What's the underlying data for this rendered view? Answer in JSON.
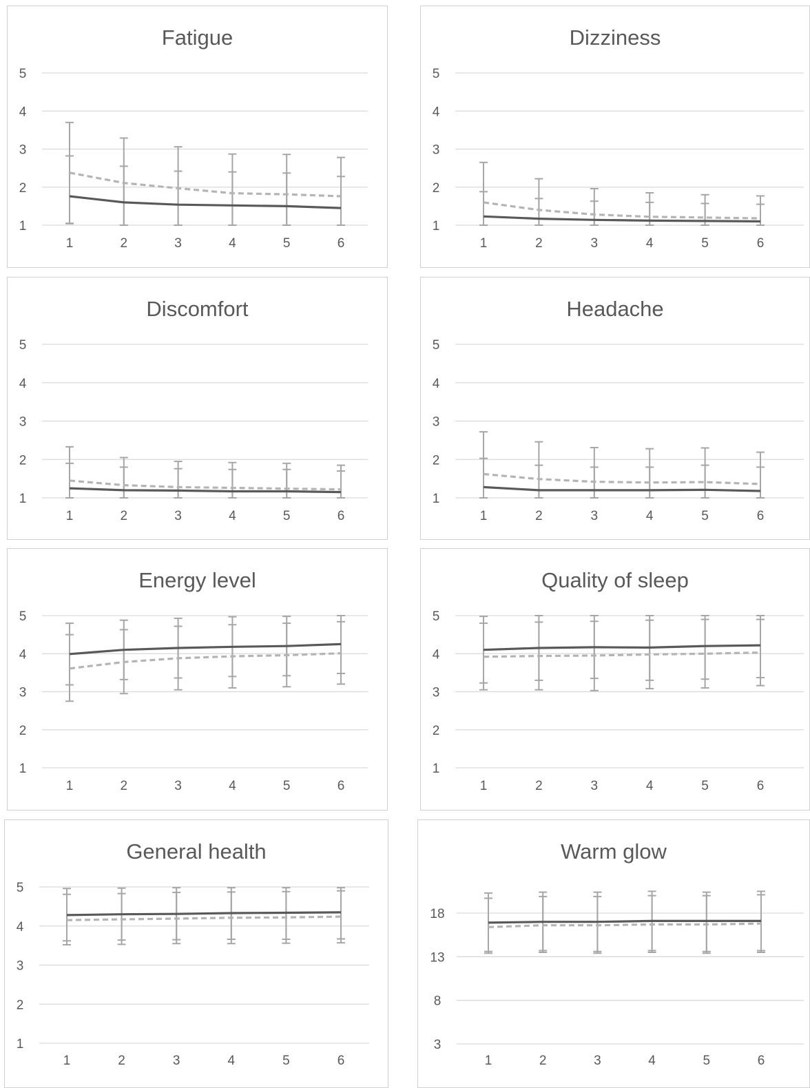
{
  "colors": {
    "series_solid": "#595959",
    "series_dashed": "#b4b4b4",
    "error_bar": "#a6a6a6",
    "grid": "#d9d9d9",
    "border": "#d0d0d0",
    "text": "#595959"
  },
  "chart_data": [
    {
      "type": "line",
      "title": "Fatigue",
      "x": [
        1,
        2,
        3,
        4,
        5,
        6
      ],
      "ylim": [
        1,
        5
      ],
      "yticks": [
        1,
        2,
        3,
        4,
        5
      ],
      "grid": true,
      "series": [
        {
          "style": "solid",
          "values": [
            1.76,
            1.6,
            1.54,
            1.52,
            1.5,
            1.45
          ],
          "error_low": [
            1.04,
            1.0,
            1.0,
            1.0,
            1.0,
            1.0
          ],
          "error_high": [
            2.82,
            2.55,
            2.42,
            2.4,
            2.37,
            2.28
          ]
        },
        {
          "style": "dashed",
          "values": [
            2.38,
            2.11,
            1.97,
            1.84,
            1.81,
            1.76
          ],
          "error_low": [
            1.05,
            1.0,
            1.0,
            1.0,
            1.0,
            1.0
          ],
          "error_high": [
            3.7,
            3.29,
            3.06,
            2.87,
            2.86,
            2.78
          ]
        }
      ]
    },
    {
      "type": "line",
      "title": "Dizziness",
      "x": [
        1,
        2,
        3,
        4,
        5,
        6
      ],
      "ylim": [
        1,
        5
      ],
      "yticks": [
        1,
        2,
        3,
        4,
        5
      ],
      "grid": true,
      "series": [
        {
          "style": "solid",
          "values": [
            1.23,
            1.17,
            1.14,
            1.12,
            1.11,
            1.1
          ],
          "error_low": [
            1.0,
            1.0,
            1.0,
            1.0,
            1.0,
            1.0
          ],
          "error_high": [
            1.88,
            1.7,
            1.63,
            1.6,
            1.57,
            1.55
          ]
        },
        {
          "style": "dashed",
          "values": [
            1.6,
            1.4,
            1.28,
            1.22,
            1.2,
            1.18
          ],
          "error_low": [
            1.0,
            1.0,
            1.0,
            1.0,
            1.0,
            1.0
          ],
          "error_high": [
            2.65,
            2.22,
            1.96,
            1.85,
            1.8,
            1.77
          ]
        }
      ]
    },
    {
      "type": "line",
      "title": "Discomfort",
      "x": [
        1,
        2,
        3,
        4,
        5,
        6
      ],
      "ylim": [
        1,
        5
      ],
      "yticks": [
        1,
        2,
        3,
        4,
        5
      ],
      "grid": true,
      "series": [
        {
          "style": "solid",
          "values": [
            1.25,
            1.2,
            1.19,
            1.17,
            1.17,
            1.15
          ],
          "error_low": [
            1.0,
            1.0,
            1.0,
            1.0,
            1.0,
            1.0
          ],
          "error_high": [
            1.9,
            1.8,
            1.76,
            1.74,
            1.74,
            1.7
          ]
        },
        {
          "style": "dashed",
          "values": [
            1.45,
            1.33,
            1.28,
            1.26,
            1.24,
            1.22
          ],
          "error_low": [
            1.0,
            1.0,
            1.0,
            1.0,
            1.0,
            1.0
          ],
          "error_high": [
            2.33,
            2.05,
            1.95,
            1.92,
            1.9,
            1.85
          ]
        }
      ]
    },
    {
      "type": "line",
      "title": "Headache",
      "x": [
        1,
        2,
        3,
        4,
        5,
        6
      ],
      "ylim": [
        1,
        5
      ],
      "yticks": [
        1,
        2,
        3,
        4,
        5
      ],
      "grid": true,
      "series": [
        {
          "style": "solid",
          "values": [
            1.28,
            1.2,
            1.2,
            1.2,
            1.21,
            1.18
          ],
          "error_low": [
            1.0,
            1.0,
            1.0,
            1.0,
            1.0,
            1.0
          ],
          "error_high": [
            2.03,
            1.85,
            1.8,
            1.8,
            1.85,
            1.8
          ]
        },
        {
          "style": "dashed",
          "values": [
            1.62,
            1.49,
            1.42,
            1.4,
            1.41,
            1.36
          ],
          "error_low": [
            1.0,
            1.0,
            1.0,
            1.0,
            1.0,
            1.0
          ],
          "error_high": [
            2.72,
            2.46,
            2.31,
            2.28,
            2.3,
            2.19
          ]
        }
      ]
    },
    {
      "type": "line",
      "title": "Energy level",
      "x": [
        1,
        2,
        3,
        4,
        5,
        6
      ],
      "ylim": [
        1,
        5
      ],
      "yticks": [
        1,
        2,
        3,
        4,
        5
      ],
      "grid": true,
      "series": [
        {
          "style": "solid",
          "values": [
            3.99,
            4.1,
            4.15,
            4.18,
            4.2,
            4.25
          ],
          "error_low": [
            3.18,
            3.32,
            3.36,
            3.4,
            3.42,
            3.48
          ],
          "error_high": [
            4.8,
            4.88,
            4.93,
            4.97,
            4.98,
            5.0
          ]
        },
        {
          "style": "dashed",
          "values": [
            3.61,
            3.78,
            3.88,
            3.93,
            3.96,
            4.01
          ],
          "error_low": [
            2.75,
            2.95,
            3.05,
            3.1,
            3.13,
            3.2
          ],
          "error_high": [
            4.5,
            4.63,
            4.72,
            4.76,
            4.8,
            4.84
          ]
        }
      ]
    },
    {
      "type": "line",
      "title": "Quality of sleep",
      "x": [
        1,
        2,
        3,
        4,
        5,
        6
      ],
      "ylim": [
        1,
        5
      ],
      "yticks": [
        1,
        2,
        3,
        4,
        5
      ],
      "grid": true,
      "series": [
        {
          "style": "solid",
          "values": [
            4.1,
            4.15,
            4.17,
            4.16,
            4.2,
            4.22
          ],
          "error_low": [
            3.23,
            3.3,
            3.35,
            3.3,
            3.33,
            3.37
          ],
          "error_high": [
            4.98,
            5.0,
            5.0,
            5.0,
            5.0,
            5.0
          ]
        },
        {
          "style": "dashed",
          "values": [
            3.92,
            3.94,
            3.95,
            3.98,
            4.0,
            4.03
          ],
          "error_low": [
            3.05,
            3.05,
            3.03,
            3.08,
            3.1,
            3.16
          ],
          "error_high": [
            4.8,
            4.83,
            4.85,
            4.88,
            4.9,
            4.9
          ]
        }
      ]
    },
    {
      "type": "line",
      "title": "General health",
      "x": [
        1,
        2,
        3,
        4,
        5,
        6
      ],
      "ylim": [
        1,
        5
      ],
      "yticks": [
        1,
        2,
        3,
        4,
        5
      ],
      "grid": true,
      "series": [
        {
          "style": "solid",
          "values": [
            4.28,
            4.3,
            4.31,
            4.33,
            4.34,
            4.35
          ],
          "error_low": [
            3.62,
            3.64,
            3.65,
            3.66,
            3.66,
            3.67
          ],
          "error_high": [
            4.96,
            4.97,
            4.98,
            4.98,
            4.98,
            4.98
          ]
        },
        {
          "style": "dashed",
          "values": [
            4.15,
            4.17,
            4.19,
            4.21,
            4.22,
            4.24
          ],
          "error_low": [
            3.52,
            3.53,
            3.55,
            3.55,
            3.56,
            3.57
          ],
          "error_high": [
            4.81,
            4.83,
            4.86,
            4.87,
            4.88,
            4.9
          ]
        }
      ]
    },
    {
      "type": "line",
      "title": "Warm glow",
      "x": [
        1,
        2,
        3,
        4,
        5,
        6
      ],
      "ylim": [
        3,
        23
      ],
      "yticks": [
        3,
        8,
        13,
        18
      ],
      "grid": true,
      "series": [
        {
          "style": "solid",
          "values": [
            16.9,
            17.0,
            17.0,
            17.1,
            17.1,
            17.1
          ],
          "error_low": [
            13.6,
            13.7,
            13.6,
            13.7,
            13.6,
            13.7
          ],
          "error_high": [
            20.3,
            20.4,
            20.4,
            20.5,
            20.4,
            20.5
          ]
        },
        {
          "style": "dashed",
          "values": [
            16.4,
            16.6,
            16.6,
            16.7,
            16.7,
            16.8
          ],
          "error_low": [
            13.4,
            13.5,
            13.4,
            13.5,
            13.4,
            13.5
          ],
          "error_high": [
            19.7,
            19.9,
            19.9,
            20.0,
            20.0,
            20.1
          ]
        }
      ]
    }
  ]
}
